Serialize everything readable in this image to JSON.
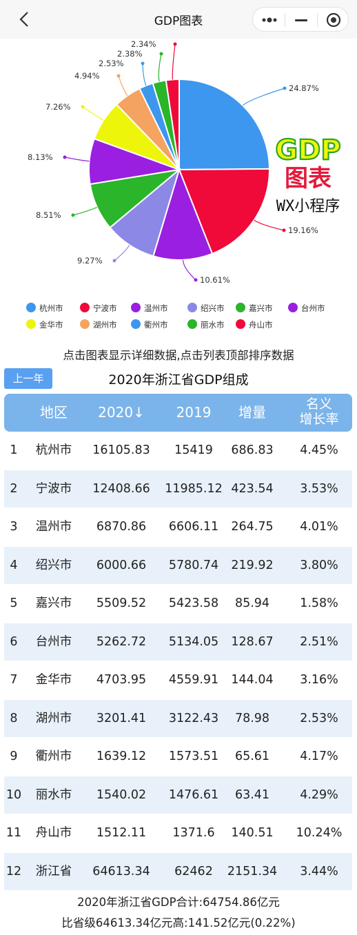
{
  "nav": {
    "title": "GDP图表"
  },
  "logo": {
    "line1": "GDP",
    "line2": "图表",
    "line3": "WX小程序"
  },
  "chart_data": {
    "type": "pie",
    "categories": [
      "杭州市",
      "宁波市",
      "温州市",
      "绍兴市",
      "嘉兴市",
      "台州市",
      "金华市",
      "湖州市",
      "衢州市",
      "丽水市",
      "舟山市"
    ],
    "values": [
      24.87,
      19.16,
      10.61,
      9.27,
      8.51,
      8.13,
      7.26,
      4.94,
      2.53,
      2.38,
      2.34
    ],
    "labels": [
      "24.87%",
      "19.16%",
      "10.61%",
      "9.27%",
      "8.51%",
      "8.13%",
      "7.26%",
      "4.94%",
      "2.53%",
      "2.38%",
      "2.34%"
    ],
    "colors": [
      "#3d97ee",
      "#ef0a3a",
      "#9b1fe0",
      "#8c88e6",
      "#2ab52a",
      "#9b1fe0",
      "#edf50a",
      "#f4a460",
      "#3d97ee",
      "#2ab52a",
      "#ef0a3a"
    ],
    "legend_placement": "bottom"
  },
  "hint": "点击图表显示详细数据,点击列表顶部排序数据",
  "prev_button": "上一年",
  "table": {
    "title": "2020年浙江省GDP组成",
    "headers": [
      "",
      "地区",
      "2020↓",
      "2019",
      "增量",
      "名义",
      "增长率"
    ],
    "rows": [
      [
        "1",
        "杭州市",
        "16105.83",
        "15419",
        "686.83",
        "4.45%"
      ],
      [
        "2",
        "宁波市",
        "12408.66",
        "11985.12",
        "423.54",
        "3.53%"
      ],
      [
        "3",
        "温州市",
        "6870.86",
        "6606.11",
        "264.75",
        "4.01%"
      ],
      [
        "4",
        "绍兴市",
        "6000.66",
        "5780.74",
        "219.92",
        "3.80%"
      ],
      [
        "5",
        "嘉兴市",
        "5509.52",
        "5423.58",
        "85.94",
        "1.58%"
      ],
      [
        "6",
        "台州市",
        "5262.72",
        "5134.05",
        "128.67",
        "2.51%"
      ],
      [
        "7",
        "金华市",
        "4703.95",
        "4559.91",
        "144.04",
        "3.16%"
      ],
      [
        "8",
        "湖州市",
        "3201.41",
        "3122.43",
        "78.98",
        "2.53%"
      ],
      [
        "9",
        "衢州市",
        "1639.12",
        "1573.51",
        "65.61",
        "4.17%"
      ],
      [
        "10",
        "丽水市",
        "1540.02",
        "1476.61",
        "63.41",
        "4.29%"
      ],
      [
        "11",
        "舟山市",
        "1512.11",
        "1371.6",
        "140.51",
        "10.24%"
      ],
      [
        "12",
        "浙江省",
        "64613.34",
        "62462",
        "2151.34",
        "3.44%"
      ]
    ]
  },
  "footer": {
    "line1": "2020年浙江省GDP合计:64754.86亿元",
    "line2": "比省级64613.34亿元高:141.52亿元(0.22%)"
  }
}
